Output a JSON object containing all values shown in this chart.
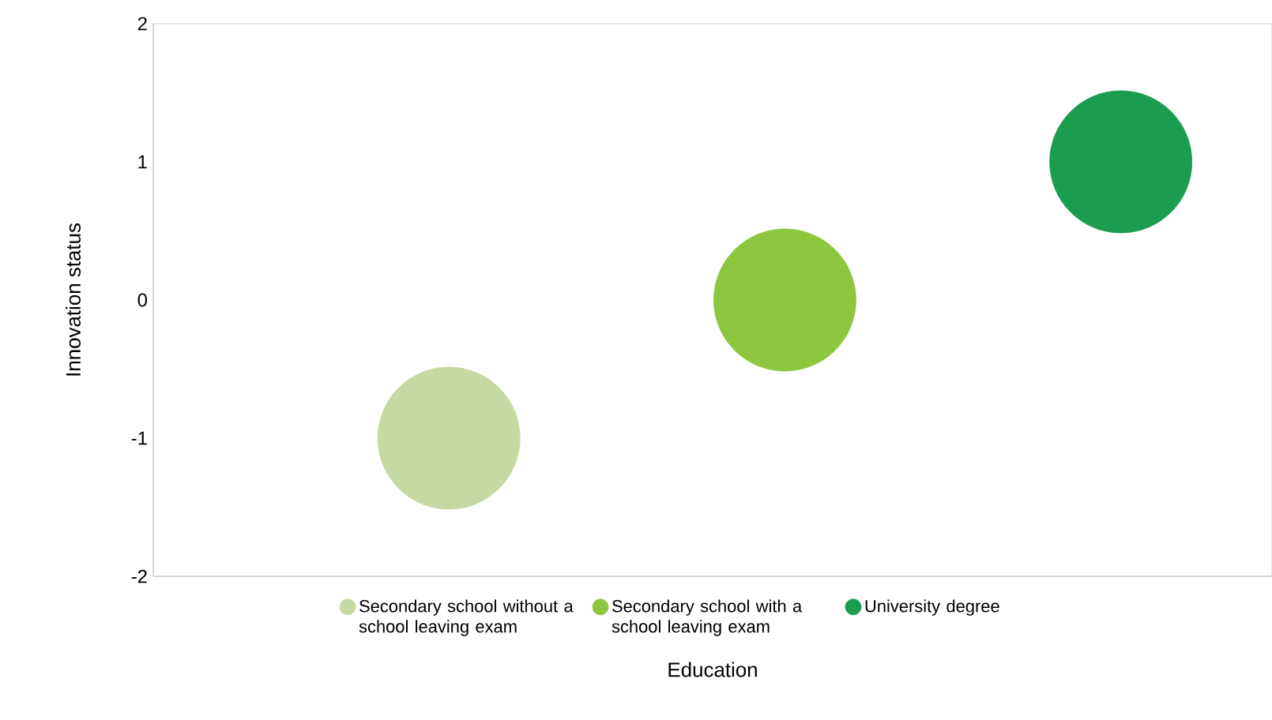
{
  "chart_data": {
    "type": "bubble",
    "xlabel": "Education",
    "ylabel": "Innovation status",
    "categories": [
      null,
      null,
      null
    ],
    "series": [
      {
        "name": "Secondary school without a school leaving exam",
        "color": "#c6d9a2",
        "values": [
          -1,
          null,
          null
        ],
        "sizes": [
          1,
          null,
          null
        ]
      },
      {
        "name": "Secondary school with a school leaving exam",
        "color": "#8dc63f",
        "values": [
          null,
          0,
          null
        ],
        "sizes": [
          null,
          1,
          null
        ]
      },
      {
        "name": "University degree",
        "color": "#1b9d4f",
        "values": [
          null,
          null,
          1
        ],
        "sizes": [
          null,
          null,
          1
        ]
      }
    ],
    "ylim": [
      -2,
      2
    ],
    "yticks": [
      -2,
      -1,
      0,
      1,
      2
    ],
    "tick_labels": "y",
    "grid": false,
    "legend": "bottom"
  }
}
